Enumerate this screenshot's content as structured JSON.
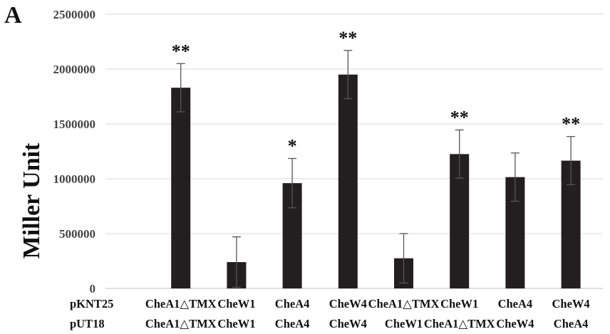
{
  "panel_label": "A",
  "chart_data": {
    "type": "bar",
    "title": "",
    "xlabel": "",
    "ylabel": "Miller Unit",
    "ylim": [
      0,
      2500000
    ],
    "yticks": [
      0,
      500000,
      1000000,
      1500000,
      2000000,
      2500000
    ],
    "ytick_labels": [
      "0",
      "500000",
      "1000000",
      "1500000",
      "2000000",
      "2500000"
    ],
    "row_labels": [
      "pKNT25",
      "pUT18"
    ],
    "categories": [
      {
        "pKNT25": "CheA1△TMX",
        "pUT18": "CheA1△TMX"
      },
      {
        "pKNT25": "CheW1",
        "pUT18": "CheW1"
      },
      {
        "pKNT25": "CheA4",
        "pUT18": "CheA4"
      },
      {
        "pKNT25": "CheW4",
        "pUT18": "CheW4"
      },
      {
        "pKNT25": "CheA1△TMX",
        "pUT18": "CheW1"
      },
      {
        "pKNT25": "CheW1",
        "pUT18": "CheA1△TMX"
      },
      {
        "pKNT25": "CheA4",
        "pUT18": "CheW4"
      },
      {
        "pKNT25": "CheW4",
        "pUT18": "CheA4"
      }
    ],
    "values": [
      1830000,
      240000,
      960000,
      1950000,
      275000,
      1225000,
      1015000,
      1165000
    ],
    "errors": [
      220000,
      230000,
      225000,
      220000,
      225000,
      220000,
      220000,
      220000
    ],
    "significance": [
      "**",
      "",
      "*",
      "**",
      "",
      "**",
      "",
      "**"
    ],
    "bar_color": "#231f20",
    "grid": true,
    "grid_color": "#d9d9d9",
    "legend": "none"
  }
}
